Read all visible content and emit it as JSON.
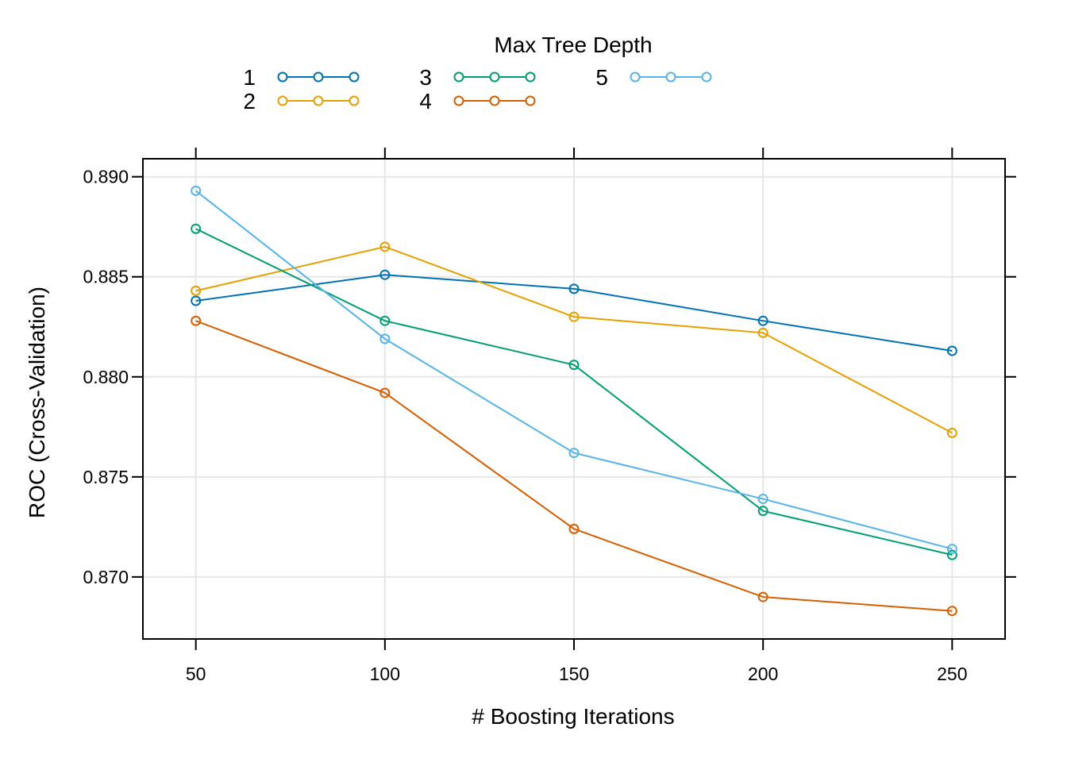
{
  "chart_data": {
    "type": "line",
    "title": "",
    "xlabel": "# Boosting Iterations",
    "ylabel": "ROC (Cross-Validation)",
    "legend_title": "Max Tree Depth",
    "legend_position": "top",
    "grid": true,
    "x": [
      50,
      100,
      150,
      200,
      250
    ],
    "xlim": [
      36,
      264
    ],
    "ylim": [
      0.8669,
      0.8909
    ],
    "xticks": [
      "50",
      "100",
      "150",
      "200",
      "250"
    ],
    "yticks": [
      "0.870",
      "0.875",
      "0.880",
      "0.885",
      "0.890"
    ],
    "series": [
      {
        "name": "1",
        "color": "#0072B2",
        "values": [
          0.8838,
          0.8851,
          0.8844,
          0.8828,
          0.8813
        ]
      },
      {
        "name": "2",
        "color": "#E69F00",
        "values": [
          0.8843,
          0.8865,
          0.883,
          0.8822,
          0.8772
        ]
      },
      {
        "name": "3",
        "color": "#009E73",
        "values": [
          0.8874,
          0.8828,
          0.8806,
          0.8733,
          0.8711
        ]
      },
      {
        "name": "4",
        "color": "#D55E00",
        "values": [
          0.8828,
          0.8792,
          0.8724,
          0.869,
          0.8683
        ]
      },
      {
        "name": "5",
        "color": "#56B4E9",
        "values": [
          0.8893,
          0.8819,
          0.8762,
          0.8739,
          0.8714
        ]
      }
    ]
  }
}
